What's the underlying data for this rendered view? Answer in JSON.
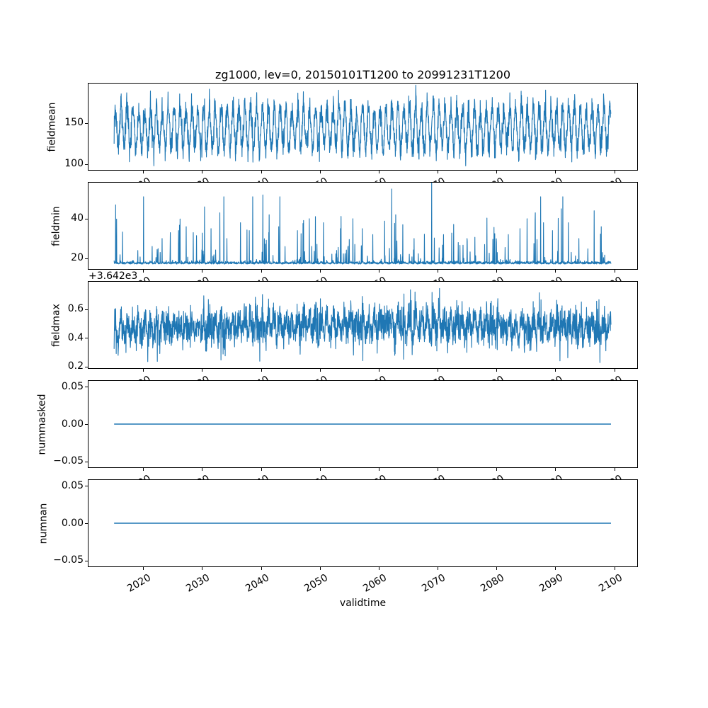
{
  "chart_data": {
    "type": "line",
    "title": "zg1000, lev=0, 20150101T1200 to 20991231T1200",
    "xlabel": "validtime",
    "line_color": "#1f77b4",
    "grid": false,
    "legend": "none",
    "x": {
      "lim": [
        2010.7,
        2103.9
      ],
      "ticks": [
        2020,
        2030,
        2040,
        2050,
        2060,
        2070,
        2080,
        2090,
        2100
      ],
      "tick_labels": [
        "2020",
        "2030",
        "2040",
        "2050",
        "2060",
        "2070",
        "2080",
        "2090",
        "2100"
      ],
      "tick_rotation_deg": 30,
      "data_start": 2015.05,
      "data_end": 2099.45
    },
    "subplots": [
      {
        "name": "fieldmean",
        "ylabel": "fieldmean",
        "ylim": [
          93,
          198
        ],
        "yticks": [
          100,
          150
        ],
        "ytick_labels": [
          "100",
          "150"
        ],
        "series": {
          "kind": "seasonal_noise",
          "n": 2600,
          "seed": 1,
          "base": 144,
          "seasonal_amp": 24,
          "amp_jitter": 0.5,
          "noise_sd": 8,
          "clamp": [
            96,
            196
          ],
          "forced": [
            [
              2066.3,
              196
            ],
            [
              2021.8,
              98
            ]
          ]
        }
      },
      {
        "name": "fieldmin",
        "ylabel": "fieldmin",
        "ylim": [
          14.6,
          58.2
        ],
        "yticks": [
          20,
          40
        ],
        "ytick_labels": [
          "20",
          "40"
        ],
        "series": {
          "kind": "baseline_spikes",
          "n": 2600,
          "seed": 7,
          "base": 17.1,
          "base_noise": 0.6,
          "spike_prob": 0.05,
          "spike_scale": 9,
          "spike_cap": 34,
          "forced": [
            [
              2015.3,
              47
            ],
            [
              2021.5,
              26
            ],
            [
              2023.2,
              30
            ],
            [
              2024.6,
              33
            ],
            [
              2026.0,
              34
            ],
            [
              2027.3,
              36
            ],
            [
              2028.5,
              33
            ],
            [
              2030.4,
              46
            ],
            [
              2031.5,
              35
            ],
            [
              2033.0,
              43
            ],
            [
              2034.2,
              30
            ],
            [
              2036.5,
              38
            ],
            [
              2038.0,
              34
            ],
            [
              2040.3,
              52
            ],
            [
              2041.4,
              42
            ],
            [
              2043.0,
              36
            ],
            [
              2046.2,
              34
            ],
            [
              2048.2,
              40
            ],
            [
              2050.6,
              38
            ],
            [
              2053.5,
              35
            ],
            [
              2055.6,
              40
            ],
            [
              2057.2,
              35
            ],
            [
              2059.0,
              32
            ],
            [
              2062.2,
              55
            ],
            [
              2062.9,
              42
            ],
            [
              2064.1,
              37
            ],
            [
              2066.0,
              30
            ],
            [
              2069.0,
              58.5
            ],
            [
              2071.0,
              32
            ],
            [
              2073.5,
              28
            ],
            [
              2075.0,
              30
            ],
            [
              2078.0,
              27
            ],
            [
              2080.0,
              28
            ],
            [
              2082.0,
              32
            ],
            [
              2084.0,
              35
            ],
            [
              2085.2,
              40
            ],
            [
              2086.6,
              43
            ],
            [
              2088.0,
              38
            ],
            [
              2089.5,
              34
            ],
            [
              2091.0,
              45
            ],
            [
              2092.2,
              38
            ],
            [
              2094.0,
              30
            ],
            [
              2096.6,
              44
            ],
            [
              2097.8,
              36
            ]
          ]
        }
      },
      {
        "name": "fieldmax",
        "ylabel": "fieldmax",
        "offset_text": "+3.642e3",
        "ylim": [
          3642.188,
          3642.79
        ],
        "yticks": [
          3642.2,
          3642.4,
          3642.6
        ],
        "ytick_labels": [
          "0.2",
          "0.4",
          "0.6"
        ],
        "series": {
          "kind": "seasonal_noise",
          "n": 2600,
          "seed": 3,
          "base": 3642.46,
          "seasonal_amp": 0.05,
          "amp_jitter": 0.4,
          "noise_sd": 0.063,
          "slow_amp": 0.03,
          "clamp": [
            3642.225,
            3642.745
          ],
          "forced": [
            [
              2022.4,
              3642.235
            ],
            [
              2033.2,
              3642.245
            ],
            [
              2057.3,
              3642.24
            ],
            [
              2064.2,
              3642.25
            ],
            [
              2092.1,
              3642.26
            ]
          ]
        }
      },
      {
        "name": "nummasked",
        "ylabel": "nummasked",
        "ylim": [
          -0.058,
          0.058
        ],
        "yticks": [
          -0.05,
          0,
          0.05
        ],
        "ytick_labels": [
          "−0.05",
          "0.00",
          "0.05"
        ],
        "series": {
          "kind": "constant",
          "value": 0
        }
      },
      {
        "name": "numnan",
        "ylabel": "numnan",
        "ylim": [
          -0.058,
          0.058
        ],
        "yticks": [
          -0.05,
          0,
          0.05
        ],
        "ytick_labels": [
          "−0.05",
          "0.00",
          "0.05"
        ],
        "series": {
          "kind": "constant",
          "value": 0
        }
      }
    ]
  }
}
